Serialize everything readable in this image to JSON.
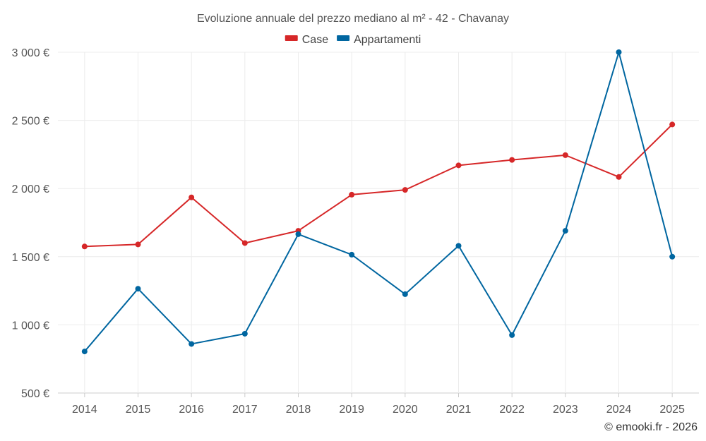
{
  "chart_data": {
    "type": "line",
    "title": "Evoluzione annuale del prezzo mediano al m² - 42 - Chavanay",
    "categories": [
      "2014",
      "2015",
      "2016",
      "2017",
      "2018",
      "2019",
      "2020",
      "2021",
      "2022",
      "2023",
      "2024",
      "2025"
    ],
    "series": [
      {
        "name": "Case",
        "color": "#d62728",
        "values": [
          1575,
          1590,
          1935,
          1600,
          1690,
          1955,
          1990,
          2170,
          2210,
          2245,
          2085,
          2470
        ]
      },
      {
        "name": "Appartamenti",
        "color": "#0066a0",
        "values": [
          805,
          1265,
          860,
          935,
          1665,
          1515,
          1225,
          1580,
          925,
          1690,
          3000,
          1500
        ]
      }
    ],
    "ylim": [
      500,
      3000
    ],
    "yticks": [
      500,
      1000,
      1500,
      2000,
      2500,
      3000
    ],
    "ytick_labels": [
      "500 €",
      "1 000 €",
      "1 500 €",
      "2 000 €",
      "2 500 €",
      "3 000 €"
    ],
    "grid": true,
    "legend": "top-center"
  },
  "credit": "© emooki.fr - 2026"
}
